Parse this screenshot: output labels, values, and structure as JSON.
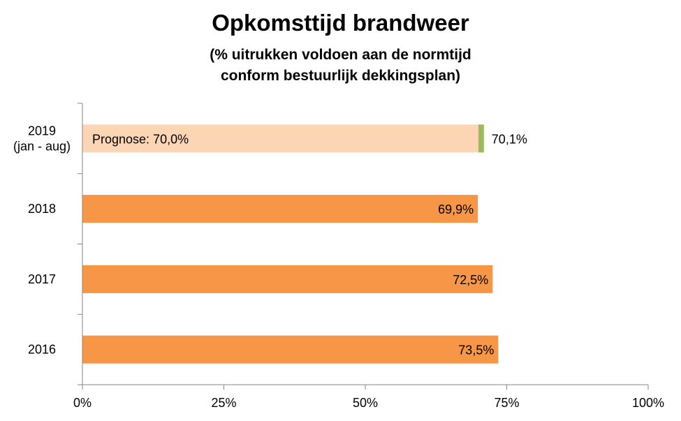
{
  "chart_data": {
    "type": "bar",
    "orientation": "horizontal",
    "title": "Opkomsttijd brandweer",
    "subtitle_lines": [
      "(% uitrukken voldoen aan de normtijd",
      "conform bestuurlijk dekkingsplan)"
    ],
    "categories": [
      {
        "lines": [
          "2019",
          "(jan - aug)"
        ]
      },
      {
        "lines": [
          "2018"
        ]
      },
      {
        "lines": [
          "2017"
        ]
      },
      {
        "lines": [
          "2016"
        ]
      }
    ],
    "bars": [
      {
        "value": 70.1,
        "label": "70,1%",
        "color": "#FCD5B5",
        "label_position": "outside",
        "prognose_value": 70.0,
        "prognose_label": "Prognose: 70,0%",
        "marker_color": "#9BBB59"
      },
      {
        "value": 69.9,
        "label": "69,9%",
        "color": "#F79646",
        "label_position": "inside-end"
      },
      {
        "value": 72.5,
        "label": "72,5%",
        "color": "#F79646",
        "label_position": "inside-end"
      },
      {
        "value": 73.5,
        "label": "73,5%",
        "color": "#F79646",
        "label_position": "inside-end"
      }
    ],
    "xlim": [
      0,
      100
    ],
    "x_ticks": [
      0,
      25,
      50,
      75,
      100
    ],
    "x_tick_labels": [
      "0%",
      "25%",
      "50%",
      "75%",
      "100%"
    ],
    "grid": false,
    "legend": "none"
  }
}
